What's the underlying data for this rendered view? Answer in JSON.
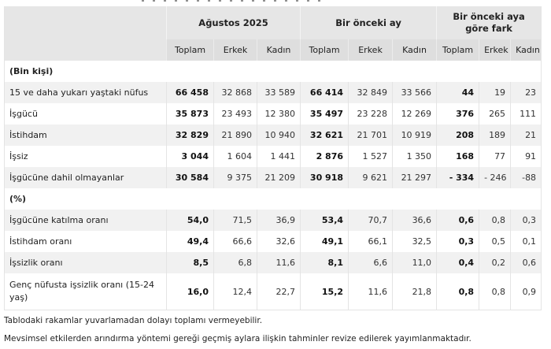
{
  "table": {
    "column_groups": [
      {
        "label": "Ağustos 2025"
      },
      {
        "label": "Bir önceki ay"
      },
      {
        "label": "Bir önceki aya göre fark"
      }
    ],
    "sub_columns": [
      "Toplam",
      "Erkek",
      "Kadın",
      "Toplam",
      "Erkek",
      "Kadın",
      "Toplam",
      "Erkek",
      "Kadın"
    ],
    "sections": [
      {
        "title": "(Bin kişi)",
        "rows": [
          {
            "label": "15 ve daha yukarı yaştaki nüfus",
            "values": [
              "66 458",
              "32 868",
              "33 589",
              "66 414",
              "32 849",
              "33 566",
              "44",
              "19",
              "23"
            ]
          },
          {
            "label": "İşgücü",
            "values": [
              "35 873",
              "23 493",
              "12 380",
              "35 497",
              "23 228",
              "12 269",
              "376",
              "265",
              "111"
            ]
          },
          {
            "label": "İstihdam",
            "values": [
              "32 829",
              "21 890",
              "10 940",
              "32 621",
              "21 701",
              "10 919",
              "208",
              "189",
              "21"
            ]
          },
          {
            "label": "İşsiz",
            "values": [
              "3 044",
              "1 604",
              "1 441",
              "2 876",
              "1 527",
              "1 350",
              "168",
              "77",
              "91"
            ]
          },
          {
            "label": "İşgücüne dahil olmayanlar",
            "values": [
              "30 584",
              "9 375",
              "21 209",
              "30 918",
              "9 621",
              "21 297",
              "- 334",
              "- 246",
              "-88"
            ]
          }
        ]
      },
      {
        "title": "(%)",
        "rows": [
          {
            "label": "İşgücüne katılma oranı",
            "values": [
              "54,0",
              "71,5",
              "36,9",
              "53,4",
              "70,7",
              "36,6",
              "0,6",
              "0,8",
              "0,3"
            ]
          },
          {
            "label": "İstihdam oranı",
            "values": [
              "49,4",
              "66,6",
              "32,6",
              "49,1",
              "66,1",
              "32,5",
              "0,3",
              "0,5",
              "0,1"
            ]
          },
          {
            "label": "İşsizlik oranı",
            "values": [
              "8,5",
              "6,8",
              "11,6",
              "8,1",
              "6,6",
              "11,0",
              "0,4",
              "0,2",
              "0,6"
            ]
          },
          {
            "label": "Genç nüfusta işsizlik oranı (15-24 yaş)",
            "values": [
              "16,0",
              "12,4",
              "22,7",
              "15,2",
              "11,6",
              "21,8",
              "0,8",
              "0,8",
              "0,9"
            ]
          }
        ]
      }
    ]
  },
  "notes": [
    "Tablodaki rakamlar yuvarlamadan dolayı toplamı vermeyebilir.",
    "Mevsimsel etkilerden arındırma yöntemi gereği geçmiş aylara ilişkin tahminler revize edilerek yayımlanmaktadır."
  ]
}
